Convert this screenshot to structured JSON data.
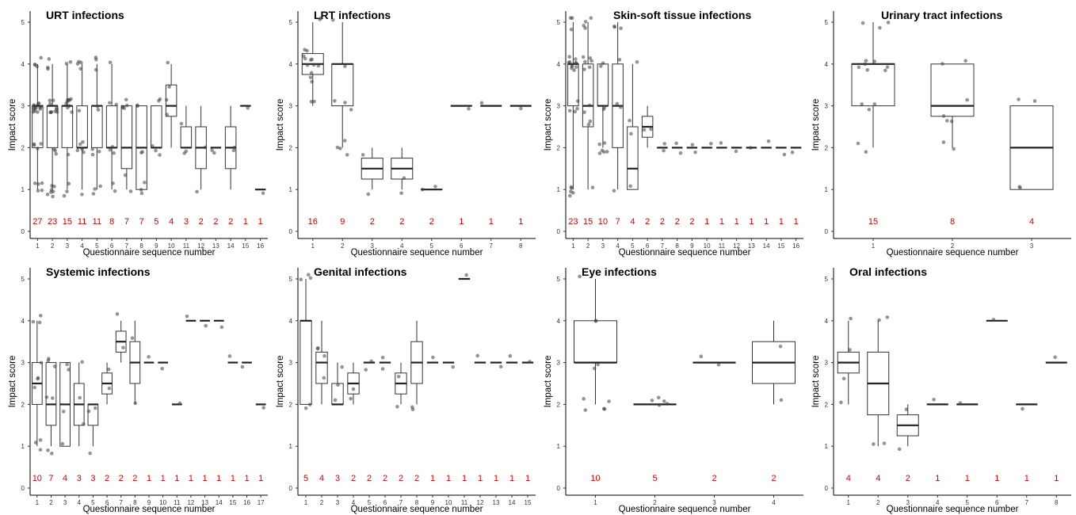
{
  "figure": {
    "shared_xlabel": "Questionnaire sequence number",
    "shared_ylabel": "Impact score"
  },
  "chart_data": [
    {
      "type": "box",
      "title": "URT infections",
      "xlabel": "Questionnaire sequence number",
      "ylabel": "Impact score",
      "ylim": [
        0,
        5
      ],
      "yticks": [
        0,
        1,
        2,
        3,
        4,
        5
      ],
      "categories": [
        "1",
        "2",
        "3",
        "4",
        "5",
        "6",
        "7",
        "8",
        "9",
        "10",
        "11",
        "12",
        "13",
        "14",
        "15",
        "16"
      ],
      "n_labels": [
        "27",
        "23",
        "15",
        "11",
        "11",
        "8",
        "7",
        "7",
        "5",
        "4",
        "3",
        "2",
        "2",
        "2",
        "1",
        "1"
      ],
      "boxes": [
        {
          "q1": 2,
          "median": 3,
          "q3": 3,
          "lo": 1,
          "hi": 4
        },
        {
          "q1": 2,
          "median": 3,
          "q3": 3,
          "lo": 1,
          "hi": 4
        },
        {
          "q1": 2,
          "median": 3,
          "q3": 3,
          "lo": 1,
          "hi": 4
        },
        {
          "q1": 2,
          "median": 2,
          "q3": 3,
          "lo": 1,
          "hi": 4
        },
        {
          "q1": 2,
          "median": 3,
          "q3": 3,
          "lo": 1,
          "hi": 4
        },
        {
          "q1": 2,
          "median": 2,
          "q3": 3,
          "lo": 1,
          "hi": 4
        },
        {
          "q1": 1.5,
          "median": 2,
          "q3": 3,
          "lo": 1,
          "hi": 3
        },
        {
          "q1": 1,
          "median": 2,
          "q3": 3,
          "lo": 1,
          "hi": 3
        },
        {
          "q1": 2,
          "median": 2,
          "q3": 3,
          "lo": 2,
          "hi": 3
        },
        {
          "q1": 2.75,
          "median": 3,
          "q3": 3.5,
          "lo": 2,
          "hi": 4
        },
        {
          "q1": 2,
          "median": 2,
          "q3": 2.5,
          "lo": 2,
          "hi": 3
        },
        {
          "q1": 1.5,
          "median": 2,
          "q3": 2.5,
          "lo": 1,
          "hi": 3
        },
        {
          "q1": 2,
          "median": 2,
          "q3": 2,
          "lo": 2,
          "hi": 2
        },
        {
          "q1": 1.5,
          "median": 2,
          "q3": 2.5,
          "lo": 1,
          "hi": 3
        },
        {
          "q1": 3,
          "median": 3,
          "q3": 3,
          "lo": 3,
          "hi": 3
        },
        {
          "q1": 1,
          "median": 1,
          "q3": 1,
          "lo": 1,
          "hi": 1
        }
      ]
    },
    {
      "type": "box",
      "title": "LRT infections",
      "xlabel": "Questionnaire sequence number",
      "ylabel": "Impact score",
      "ylim": [
        0,
        5
      ],
      "yticks": [
        0,
        1,
        2,
        3,
        4,
        5
      ],
      "categories": [
        "1",
        "2",
        "3",
        "4",
        "5",
        "6",
        "7",
        "8"
      ],
      "n_labels": [
        "16",
        "9",
        "2",
        "2",
        "2",
        "1",
        "1",
        "1"
      ],
      "boxes": [
        {
          "q1": 3.75,
          "median": 4,
          "q3": 4.25,
          "lo": 3,
          "hi": 5
        },
        {
          "q1": 3,
          "median": 4,
          "q3": 4,
          "lo": 2,
          "hi": 5
        },
        {
          "q1": 1.25,
          "median": 1.5,
          "q3": 1.75,
          "lo": 1,
          "hi": 2
        },
        {
          "q1": 1.25,
          "median": 1.5,
          "q3": 1.75,
          "lo": 1,
          "hi": 2
        },
        {
          "q1": 1,
          "median": 1,
          "q3": 1,
          "lo": 1,
          "hi": 1
        },
        {
          "q1": 3,
          "median": 3,
          "q3": 3,
          "lo": 3,
          "hi": 3
        },
        {
          "q1": 3,
          "median": 3,
          "q3": 3,
          "lo": 3,
          "hi": 3
        },
        {
          "q1": 3,
          "median": 3,
          "q3": 3,
          "lo": 3,
          "hi": 3
        }
      ]
    },
    {
      "type": "box",
      "title": "Skin-soft tissue infections",
      "xlabel": "Questionnaire sequence number",
      "ylabel": "Impact score",
      "ylim": [
        0,
        5
      ],
      "yticks": [
        0,
        1,
        2,
        3,
        4,
        5
      ],
      "categories": [
        "1",
        "2",
        "3",
        "4",
        "5",
        "6",
        "7",
        "8",
        "9",
        "10",
        "11",
        "12",
        "13",
        "14",
        "15",
        "16"
      ],
      "n_labels": [
        "23",
        "15",
        "10",
        "7",
        "4",
        "2",
        "2",
        "2",
        "2",
        "1",
        "1",
        "1",
        "1",
        "1",
        "1",
        "1"
      ],
      "boxes": [
        {
          "q1": 3,
          "median": 4,
          "q3": 4,
          "lo": 1,
          "hi": 5
        },
        {
          "q1": 2.5,
          "median": 3,
          "q3": 4,
          "lo": 1,
          "hi": 5
        },
        {
          "q1": 3,
          "median": 3,
          "q3": 4,
          "lo": 2,
          "hi": 4
        },
        {
          "q1": 2,
          "median": 3,
          "q3": 4,
          "lo": 1,
          "hi": 5
        },
        {
          "q1": 1,
          "median": 1.5,
          "q3": 2.5,
          "lo": 1,
          "hi": 4
        },
        {
          "q1": 2.25,
          "median": 2.5,
          "q3": 2.75,
          "lo": 2,
          "hi": 3
        },
        {
          "q1": 2,
          "median": 2,
          "q3": 2,
          "lo": 2,
          "hi": 2
        },
        {
          "q1": 2,
          "median": 2,
          "q3": 2,
          "lo": 2,
          "hi": 2
        },
        {
          "q1": 2,
          "median": 2,
          "q3": 2,
          "lo": 2,
          "hi": 2
        },
        {
          "q1": 2,
          "median": 2,
          "q3": 2,
          "lo": 2,
          "hi": 2
        },
        {
          "q1": 2,
          "median": 2,
          "q3": 2,
          "lo": 2,
          "hi": 2
        },
        {
          "q1": 2,
          "median": 2,
          "q3": 2,
          "lo": 2,
          "hi": 2
        },
        {
          "q1": 2,
          "median": 2,
          "q3": 2,
          "lo": 2,
          "hi": 2
        },
        {
          "q1": 2,
          "median": 2,
          "q3": 2,
          "lo": 2,
          "hi": 2
        },
        {
          "q1": 2,
          "median": 2,
          "q3": 2,
          "lo": 2,
          "hi": 2
        },
        {
          "q1": 2,
          "median": 2,
          "q3": 2,
          "lo": 2,
          "hi": 2
        }
      ]
    },
    {
      "type": "box",
      "title": "Urinary tract infections",
      "xlabel": "Questionnaire sequence number",
      "ylabel": "Impact score",
      "ylim": [
        0,
        5
      ],
      "yticks": [
        0,
        1,
        2,
        3,
        4,
        5
      ],
      "categories": [
        "1",
        "2",
        "3"
      ],
      "n_labels": [
        "15",
        "8",
        "4"
      ],
      "boxes": [
        {
          "q1": 3,
          "median": 4,
          "q3": 4,
          "lo": 2,
          "hi": 5
        },
        {
          "q1": 2.75,
          "median": 3,
          "q3": 4,
          "lo": 2,
          "hi": 4
        },
        {
          "q1": 1,
          "median": 2,
          "q3": 3,
          "lo": 1,
          "hi": 3
        }
      ]
    },
    {
      "type": "box",
      "title": "Systemic infections",
      "xlabel": "Questionnaire sequence number",
      "ylabel": "Impact score",
      "ylim": [
        0,
        5
      ],
      "yticks": [
        0,
        1,
        2,
        3,
        4,
        5
      ],
      "categories": [
        "1",
        "2",
        "3",
        "4",
        "5",
        "6",
        "7",
        "8",
        "9",
        "10",
        "11",
        "12",
        "13",
        "14",
        "15",
        "16",
        "17"
      ],
      "n_labels": [
        "10",
        "7",
        "4",
        "3",
        "3",
        "2",
        "2",
        "2",
        "1",
        "1",
        "1",
        "1",
        "1",
        "1",
        "1",
        "1",
        "1"
      ],
      "boxes": [
        {
          "q1": 2,
          "median": 2.5,
          "q3": 3,
          "lo": 1,
          "hi": 4
        },
        {
          "q1": 1.5,
          "median": 2,
          "q3": 3,
          "lo": 1,
          "hi": 3
        },
        {
          "q1": 1,
          "median": 2,
          "q3": 3,
          "lo": 1,
          "hi": 3
        },
        {
          "q1": 1.5,
          "median": 2,
          "q3": 2.5,
          "lo": 1,
          "hi": 3
        },
        {
          "q1": 1.5,
          "median": 2,
          "q3": 2,
          "lo": 1,
          "hi": 2
        },
        {
          "q1": 2.25,
          "median": 2.5,
          "q3": 2.75,
          "lo": 2,
          "hi": 3
        },
        {
          "q1": 3.25,
          "median": 3.5,
          "q3": 3.75,
          "lo": 3,
          "hi": 4
        },
        {
          "q1": 2.5,
          "median": 3,
          "q3": 3.5,
          "lo": 2,
          "hi": 4
        },
        {
          "q1": 3,
          "median": 3,
          "q3": 3,
          "lo": 3,
          "hi": 3
        },
        {
          "q1": 3,
          "median": 3,
          "q3": 3,
          "lo": 3,
          "hi": 3
        },
        {
          "q1": 2,
          "median": 2,
          "q3": 2,
          "lo": 2,
          "hi": 2
        },
        {
          "q1": 4,
          "median": 4,
          "q3": 4,
          "lo": 4,
          "hi": 4
        },
        {
          "q1": 4,
          "median": 4,
          "q3": 4,
          "lo": 4,
          "hi": 4
        },
        {
          "q1": 4,
          "median": 4,
          "q3": 4,
          "lo": 4,
          "hi": 4
        },
        {
          "q1": 3,
          "median": 3,
          "q3": 3,
          "lo": 3,
          "hi": 3
        },
        {
          "q1": 3,
          "median": 3,
          "q3": 3,
          "lo": 3,
          "hi": 3
        },
        {
          "q1": 2,
          "median": 2,
          "q3": 2,
          "lo": 2,
          "hi": 2
        }
      ]
    },
    {
      "type": "box",
      "title": "Genital infections",
      "xlabel": "Questionnaire sequence number",
      "ylabel": "Impact score",
      "ylim": [
        0,
        5
      ],
      "yticks": [
        0,
        1,
        2,
        3,
        4,
        5
      ],
      "categories": [
        "1",
        "2",
        "3",
        "4",
        "5",
        "6",
        "7",
        "8",
        "9",
        "10",
        "11",
        "12",
        "13",
        "14",
        "15"
      ],
      "n_labels": [
        "5",
        "4",
        "3",
        "2",
        "2",
        "2",
        "2",
        "2",
        "1",
        "1",
        "1",
        "1",
        "1",
        "1",
        "1"
      ],
      "boxes": [
        {
          "q1": 2,
          "median": 4,
          "q3": 4,
          "lo": 2,
          "hi": 5
        },
        {
          "q1": 2.5,
          "median": 3,
          "q3": 3.25,
          "lo": 2,
          "hi": 4
        },
        {
          "q1": 2,
          "median": 2,
          "q3": 2.5,
          "lo": 2,
          "hi": 3
        },
        {
          "q1": 2.25,
          "median": 2.5,
          "q3": 2.75,
          "lo": 2,
          "hi": 3
        },
        {
          "q1": 3,
          "median": 3,
          "q3": 3,
          "lo": 3,
          "hi": 3
        },
        {
          "q1": 3,
          "median": 3,
          "q3": 3,
          "lo": 3,
          "hi": 3
        },
        {
          "q1": 2.25,
          "median": 2.5,
          "q3": 2.75,
          "lo": 2,
          "hi": 3
        },
        {
          "q1": 2.5,
          "median": 3,
          "q3": 3.5,
          "lo": 2,
          "hi": 4
        },
        {
          "q1": 3,
          "median": 3,
          "q3": 3,
          "lo": 3,
          "hi": 3
        },
        {
          "q1": 3,
          "median": 3,
          "q3": 3,
          "lo": 3,
          "hi": 3
        },
        {
          "q1": 5,
          "median": 5,
          "q3": 5,
          "lo": 5,
          "hi": 5
        },
        {
          "q1": 3,
          "median": 3,
          "q3": 3,
          "lo": 3,
          "hi": 3
        },
        {
          "q1": 3,
          "median": 3,
          "q3": 3,
          "lo": 3,
          "hi": 3
        },
        {
          "q1": 3,
          "median": 3,
          "q3": 3,
          "lo": 3,
          "hi": 3
        },
        {
          "q1": 3,
          "median": 3,
          "q3": 3,
          "lo": 3,
          "hi": 3
        }
      ]
    },
    {
      "type": "box",
      "title": "Eye infections",
      "xlabel": "Questionnaire sequence number",
      "ylabel": "Impact score",
      "ylim": [
        0,
        5
      ],
      "yticks": [
        0,
        1,
        2,
        3,
        4,
        5
      ],
      "categories": [
        "1",
        "2",
        "3",
        "4"
      ],
      "n_labels": [
        "10",
        "5",
        "2",
        "2"
      ],
      "boxes": [
        {
          "q1": 3,
          "median": 3,
          "q3": 4,
          "lo": 2,
          "hi": 5
        },
        {
          "q1": 2,
          "median": 2,
          "q3": 2,
          "lo": 2,
          "hi": 2
        },
        {
          "q1": 3,
          "median": 3,
          "q3": 3,
          "lo": 3,
          "hi": 3
        },
        {
          "q1": 2.5,
          "median": 3,
          "q3": 3.5,
          "lo": 2,
          "hi": 4
        }
      ]
    },
    {
      "type": "box",
      "title": "Oral infections",
      "xlabel": "Questionnaire sequence number",
      "ylabel": "Impact score",
      "ylim": [
        0,
        5
      ],
      "yticks": [
        0,
        1,
        2,
        3,
        4,
        5
      ],
      "categories": [
        "1",
        "2",
        "3",
        "4",
        "5",
        "6",
        "7",
        "8"
      ],
      "n_labels": [
        "4",
        "4",
        "2",
        "1",
        "1",
        "1",
        "1",
        "1"
      ],
      "boxes": [
        {
          "q1": 2.75,
          "median": 3,
          "q3": 3.25,
          "lo": 2,
          "hi": 4
        },
        {
          "q1": 1.75,
          "median": 2.5,
          "q3": 3.25,
          "lo": 1,
          "hi": 4
        },
        {
          "q1": 1.25,
          "median": 1.5,
          "q3": 1.75,
          "lo": 1,
          "hi": 2
        },
        {
          "q1": 2,
          "median": 2,
          "q3": 2,
          "lo": 2,
          "hi": 2
        },
        {
          "q1": 2,
          "median": 2,
          "q3": 2,
          "lo": 2,
          "hi": 2
        },
        {
          "q1": 4,
          "median": 4,
          "q3": 4,
          "lo": 4,
          "hi": 4
        },
        {
          "q1": 2,
          "median": 2,
          "q3": 2,
          "lo": 2,
          "hi": 2
        },
        {
          "q1": 3,
          "median": 3,
          "q3": 3,
          "lo": 3,
          "hi": 3
        }
      ]
    }
  ]
}
